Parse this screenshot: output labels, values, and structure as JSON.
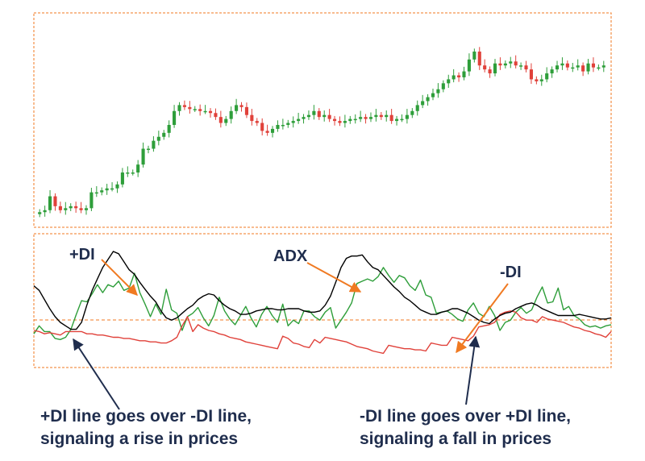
{
  "colors": {
    "up_candle": "#2e9e3a",
    "down_candle": "#e0413a",
    "plus_di": "#2e9e3a",
    "minus_di": "#e0413a",
    "adx": "#000000",
    "label_arrow": "#f07a22",
    "annotation_arrow": "#1f2d4d",
    "text": "#1f2d4d",
    "frame": "#f07a22"
  },
  "labels": {
    "plus_di": "+DI",
    "adx": "ADX",
    "minus_di": "-DI"
  },
  "annotations": {
    "rise_line1": "+DI line goes over -DI line,",
    "rise_line2": "signaling a rise in prices",
    "fall_line1": "-DI line goes over +DI line,",
    "fall_line2": "signaling a fall in prices"
  },
  "chart_data": [
    {
      "type": "candlestick",
      "title": "",
      "ylim": [
        0,
        100
      ],
      "grid": false,
      "closes": [
        6,
        7,
        14,
        9,
        7,
        8,
        9,
        8,
        7,
        8,
        16,
        16,
        17,
        18,
        18,
        20,
        26,
        26,
        26,
        30,
        38,
        38,
        42,
        44,
        46,
        50,
        57,
        60,
        59,
        58,
        58,
        57,
        57,
        56,
        54,
        51,
        53,
        57,
        60,
        59,
        55,
        52,
        51,
        47,
        46,
        48,
        50,
        50,
        51,
        52,
        53,
        54,
        55,
        57,
        54,
        55,
        53,
        52,
        51,
        52,
        53,
        53,
        54,
        53,
        54,
        55,
        54,
        55,
        52,
        53,
        53,
        55,
        57,
        60,
        62,
        64,
        66,
        68,
        71,
        73,
        75,
        74,
        77,
        83,
        87,
        80,
        78,
        76,
        81,
        80,
        81,
        82,
        80,
        80,
        78,
        73,
        72,
        73,
        76,
        78,
        80,
        81,
        79,
        79,
        80,
        77,
        81,
        79,
        79,
        80
      ]
    },
    {
      "type": "line",
      "title": "",
      "ylim": [
        0,
        100
      ],
      "grid": false,
      "series": [
        {
          "name": "+DI",
          "values": [
            28,
            35,
            30,
            30,
            24,
            23,
            25,
            32,
            45,
            57,
            56,
            63,
            71,
            64,
            71,
            69,
            74,
            66,
            68,
            81,
            64,
            54,
            43,
            54,
            45,
            67,
            49,
            46,
            31,
            43,
            46,
            51,
            42,
            35,
            44,
            60,
            48,
            41,
            36,
            44,
            52,
            42,
            34,
            45,
            52,
            44,
            38,
            54,
            35,
            40,
            37,
            48,
            48,
            43,
            40,
            47,
            51,
            33,
            40,
            47,
            55,
            72,
            74,
            76,
            74,
            78,
            86,
            79,
            73,
            79,
            77,
            70,
            66,
            75,
            62,
            60,
            46,
            47,
            48,
            45,
            41,
            39,
            49,
            55,
            46,
            43,
            52,
            44,
            31,
            38,
            40,
            47,
            51,
            46,
            49,
            60,
            69,
            55,
            56,
            68,
            49,
            52,
            44,
            41,
            36,
            34,
            35,
            33,
            35,
            36
          ]
        },
        {
          "name": "-DI",
          "values": [
            31,
            30,
            28,
            29,
            28,
            27,
            30,
            30,
            30,
            30,
            28,
            28,
            27,
            27,
            26,
            25,
            25,
            24,
            24,
            23,
            22,
            22,
            21,
            21,
            20,
            20,
            22,
            25,
            35,
            43,
            30,
            36,
            33,
            31,
            30,
            28,
            27,
            25,
            24,
            23,
            21,
            20,
            19,
            18,
            17,
            16,
            15,
            26,
            24,
            20,
            19,
            17,
            16,
            23,
            20,
            25,
            24,
            23,
            22,
            21,
            19,
            17,
            16,
            15,
            13,
            12,
            11,
            18,
            17,
            16,
            15,
            15,
            14,
            14,
            13,
            20,
            19,
            18,
            18,
            25,
            24,
            23,
            22,
            26,
            34,
            35,
            36,
            38,
            45,
            47,
            48,
            47,
            42,
            40,
            40,
            38,
            43,
            41,
            40,
            39,
            38,
            36,
            34,
            33,
            31,
            30,
            28,
            27,
            25,
            30
          ]
        },
        {
          "name": "ADX",
          "values": [
            70,
            66,
            58,
            50,
            43,
            38,
            35,
            32,
            32,
            38,
            53,
            66,
            76,
            86,
            93,
            100,
            98,
            91,
            84,
            80,
            73,
            67,
            61,
            56,
            48,
            42,
            40,
            42,
            46,
            50,
            53,
            58,
            61,
            63,
            62,
            57,
            53,
            50,
            48,
            45,
            45,
            46,
            48,
            49,
            50,
            50,
            49,
            49,
            50,
            50,
            50,
            48,
            47,
            47,
            48,
            53,
            61,
            73,
            86,
            94,
            96,
            96,
            97,
            91,
            86,
            84,
            79,
            74,
            69,
            65,
            60,
            57,
            53,
            49,
            47,
            45,
            45,
            47,
            48,
            50,
            50,
            48,
            46,
            43,
            40,
            38,
            37,
            41,
            44,
            46,
            47,
            50,
            52,
            54,
            55,
            53,
            50,
            48,
            46,
            44,
            44,
            44,
            44,
            45,
            44,
            43,
            42,
            41,
            41,
            42
          ]
        }
      ]
    }
  ]
}
